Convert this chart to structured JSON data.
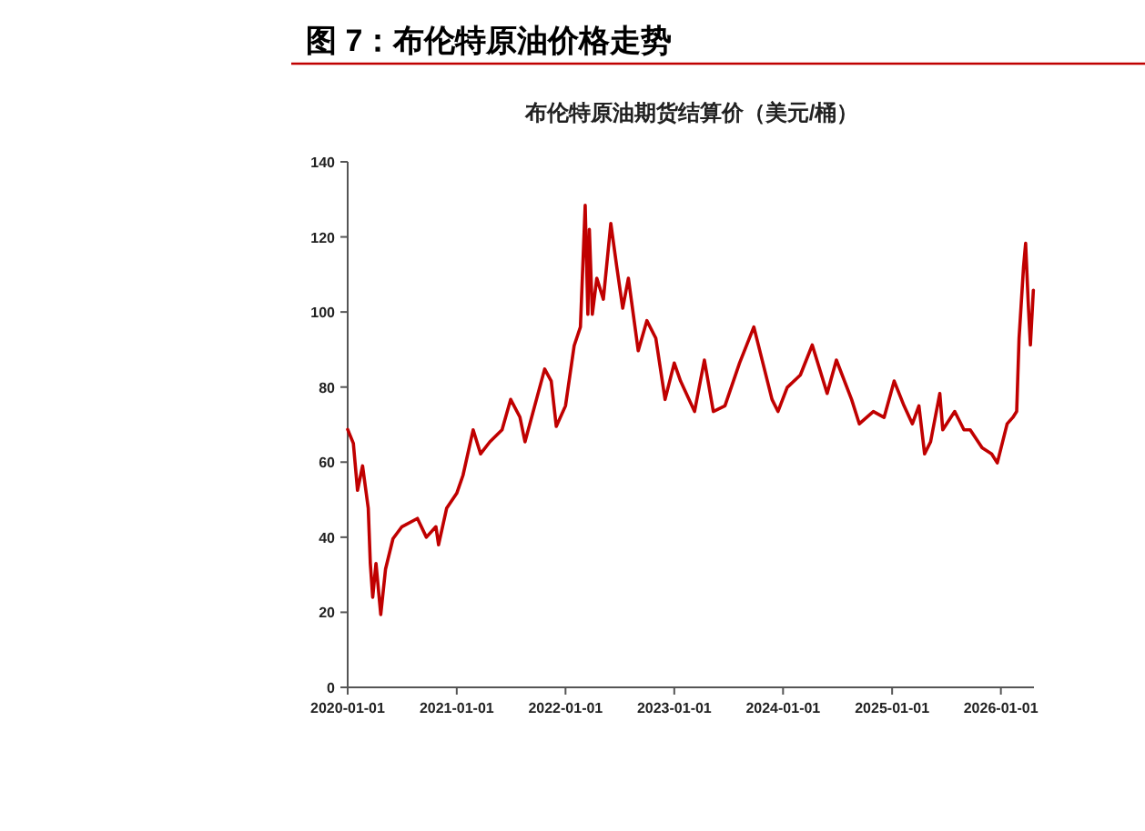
{
  "chart_data": {
    "type": "line",
    "title": "图 7：布伦特原油价格走势",
    "subtitle": "布伦特原油期货结算价（美元/桶）",
    "x": [
      "2020-01-01",
      "2020-01-20",
      "2020-02-03",
      "2020-02-20",
      "2020-03-10",
      "2020-03-17",
      "2020-03-25",
      "2020-04-05",
      "2020-04-21",
      "2020-05-07",
      "2020-06-01",
      "2020-07-01",
      "2020-08-22",
      "2020-09-21",
      "2020-10-23",
      "2020-11-01",
      "2020-11-28",
      "2021-01-01",
      "2021-01-22",
      "2021-02-25",
      "2021-03-22",
      "2021-04-22",
      "2021-06-02",
      "2021-07-01",
      "2021-08-01",
      "2021-08-18",
      "2021-10-23",
      "2021-11-14",
      "2021-12-01",
      "2022-01-01",
      "2022-01-30",
      "2022-02-20",
      "2022-03-08",
      "2022-03-17",
      "2022-03-22",
      "2022-04-01",
      "2022-04-16",
      "2022-05-08",
      "2022-06-02",
      "2022-06-22",
      "2022-07-12",
      "2022-07-31",
      "2022-09-02",
      "2022-10-01",
      "2022-10-31",
      "2022-12-01",
      "2023-01-01",
      "2023-01-22",
      "2023-03-10",
      "2023-04-12",
      "2023-05-12",
      "2023-06-20",
      "2023-08-08",
      "2023-09-25",
      "2023-11-25",
      "2023-12-15",
      "2024-01-15",
      "2024-02-28",
      "2024-04-08",
      "2024-05-28",
      "2024-06-28",
      "2024-08-18",
      "2024-09-13",
      "2024-10-30",
      "2024-12-05",
      "2025-01-08",
      "2025-02-10",
      "2025-03-10",
      "2025-04-01",
      "2025-04-20",
      "2025-05-10",
      "2025-06-10",
      "2025-06-20",
      "2025-07-30",
      "2025-08-30",
      "2025-09-20",
      "2025-10-30",
      "2025-12-01",
      "2025-12-20",
      "2026-01-22",
      "2026-02-10",
      "2026-02-23",
      "2026-03-03",
      "2026-03-18",
      "2026-03-25",
      "2026-04-03",
      "2026-04-10",
      "2026-04-20"
    ],
    "series": [
      {
        "color": "#c00000",
        "values": [
          68.7,
          65,
          52.5,
          59,
          47.7,
          33,
          24,
          33,
          19.4,
          31.5,
          39.6,
          42.8,
          45,
          40,
          42.8,
          38,
          47.7,
          51.7,
          56.5,
          68.6,
          62.2,
          65.4,
          68.6,
          76.7,
          72,
          65.4,
          84.8,
          81.6,
          69.5,
          75,
          91,
          96,
          128.4,
          99.4,
          122,
          99.4,
          109,
          103.4,
          123.6,
          112,
          101,
          109,
          89.7,
          97.7,
          93,
          76.7,
          86.4,
          81.6,
          73.5,
          87.2,
          73.5,
          75,
          86.4,
          96,
          76.7,
          73.5,
          79.9,
          83.2,
          91.2,
          78.3,
          87.2,
          76.7,
          70.2,
          73.5,
          71.9,
          81.6,
          75,
          70.2,
          75,
          62.2,
          65.4,
          78.3,
          68.6,
          73.5,
          68.6,
          68.6,
          63.8,
          62.2,
          59.8,
          70.2,
          71.9,
          73.5,
          93,
          112,
          118.3,
          102,
          91.2,
          105.8
        ]
      }
    ],
    "xlim": [
      "2020-01-01",
      "2026-04-22"
    ],
    "xticks": [
      {
        "value": "2020-01-01",
        "label": "2020-01-01"
      },
      {
        "value": "2021-01-01",
        "label": "2021-01-01"
      },
      {
        "value": "2022-01-01",
        "label": "2022-01-01"
      },
      {
        "value": "2023-01-01",
        "label": "2023-01-01"
      },
      {
        "value": "2024-01-01",
        "label": "2024-01-01"
      },
      {
        "value": "2025-01-01",
        "label": "2025-01-01"
      },
      {
        "value": "2026-01-01",
        "label": "2026-01-01"
      }
    ],
    "ylim": [
      0,
      140
    ],
    "yticks": [
      0,
      20,
      40,
      60,
      80,
      100,
      120,
      140
    ],
    "marker": "none",
    "line_style": "solid"
  }
}
